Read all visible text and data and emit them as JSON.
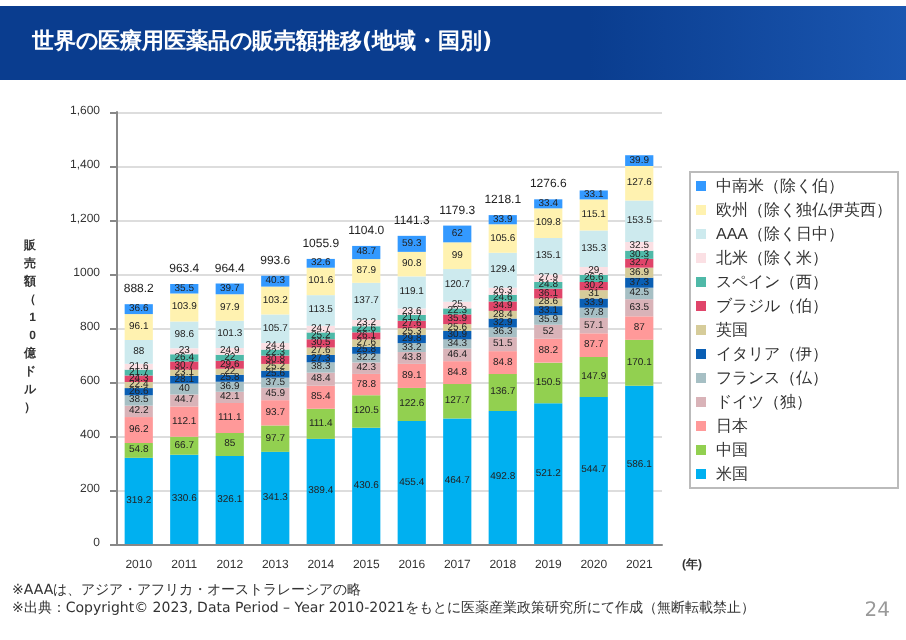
{
  "chart_data": {
    "type": "bar",
    "stacked": true,
    "title": "世界の医療用医薬品の販売額推移(地域・国別)",
    "ylabel": "販売額（10億ドル）",
    "xlabel": "(年)",
    "categories": [
      "2010",
      "2011",
      "2012",
      "2013",
      "2014",
      "2015",
      "2016",
      "2017",
      "2018",
      "2019",
      "2020",
      "2021"
    ],
    "ylim": [
      0,
      1600
    ],
    "yticks": [
      0,
      200,
      400,
      600,
      800,
      1000,
      {
        "value": 1200,
        "label": "1,200"
      },
      {
        "value": 1400,
        "label": "1,400"
      },
      {
        "value": 1600,
        "label": "1,600"
      }
    ],
    "grid": "y",
    "legend": "right",
    "data_labels": true,
    "totals": [
      "888.2",
      "963.4",
      "964.4",
      "993.6",
      "1055.9",
      "1104.0",
      "1141.3",
      "1179.3",
      "1218.1",
      "1276.6",
      null,
      null
    ],
    "series": [
      {
        "name": "米国",
        "color": "#00b0f0",
        "values": [
          319.2,
          330.6,
          326.1,
          341.3,
          389.4,
          430.6,
          455.4,
          464.7,
          492.8,
          521.2,
          544.7,
          586.1
        ]
      },
      {
        "name": "中国",
        "color": "#92d050",
        "values": [
          54.8,
          66.7,
          85.0,
          97.7,
          111.4,
          120.5,
          122.6,
          127.7,
          136.7,
          150.5,
          147.9,
          170.1
        ]
      },
      {
        "name": "日本",
        "color": "#ff9999",
        "values": [
          96.2,
          112.1,
          111.1,
          93.7,
          85.4,
          78.8,
          89.1,
          84.8,
          84.8,
          88.2,
          87.7,
          87.0
        ]
      },
      {
        "name": "ドイツ（独）",
        "color": "#d9b3b8",
        "values": [
          42.2,
          44.7,
          42.1,
          45.9,
          48.4,
          42.3,
          43.8,
          46.4,
          51.5,
          52.0,
          57.1,
          63.5
        ]
      },
      {
        "name": "フランス（仏）",
        "color": "#a6bfc4",
        "values": [
          38.5,
          40.0,
          36.9,
          37.5,
          38.3,
          32.2,
          33.2,
          34.3,
          36.3,
          35.9,
          37.8,
          42.5
        ]
      },
      {
        "name": "イタリア（伊）",
        "color": "#0a5fb4",
        "values": [
          26.6,
          28.1,
          25.8,
          25.6,
          27.3,
          25.8,
          29.8,
          30.9,
          32.9,
          33.1,
          33.9,
          37.3
        ]
      },
      {
        "name": "英国",
        "color": "#d6cc9a",
        "values": [
          22.4,
          23.1,
          22.0,
          25.2,
          27.6,
          27.6,
          25.3,
          25.6,
          28.4,
          28.6,
          31.0,
          36.9
        ]
      },
      {
        "name": "ブラジル（伯）",
        "color": "#e0456a",
        "values": [
          24.3,
          30.7,
          29.6,
          30.8,
          30.5,
          26.1,
          27.6,
          35.9,
          34.9,
          36.1,
          30.2,
          32.7
        ]
      },
      {
        "name": "スペイン（西）",
        "color": "#4fb9a8",
        "values": [
          21.7,
          26.4,
          22.0,
          22.3,
          25.2,
          22.6,
          21.7,
          22.3,
          24.6,
          24.8,
          26.6,
          30.3
        ]
      },
      {
        "name": "北米（除く米）",
        "color": "#fbe0e4",
        "values": [
          21.6,
          23.0,
          24.9,
          24.4,
          24.7,
          23.2,
          23.6,
          25.0,
          26.3,
          27.9,
          29.0,
          32.5
        ]
      },
      {
        "name": "AAA（除く日中）",
        "color": "#cdeaee",
        "values": [
          88.0,
          98.6,
          101.3,
          105.7,
          113.5,
          137.7,
          119.1,
          120.7,
          129.4,
          135.1,
          135.3,
          153.5
        ]
      },
      {
        "name": "欧州（除く独仏伊英西）",
        "color": "#fff2b0",
        "values": [
          96.1,
          103.9,
          97.9,
          103.2,
          101.6,
          87.9,
          90.8,
          99.0,
          105.6,
          109.8,
          115.1,
          127.6
        ]
      },
      {
        "name": "中南米（除く伯）",
        "color": "#3399ff",
        "values": [
          36.6,
          35.5,
          39.7,
          40.3,
          32.6,
          48.7,
          59.3,
          62.0,
          33.9,
          33.4,
          33.1,
          39.9
        ]
      }
    ],
    "annotations": [
      "※AAAは、アジア・アフリカ・オーストラレーシアの略",
      "※出典：Copyright© 2023, Data Period – Year 2010-2021をもとに医薬産業政策研究所にて作成（無断転載禁止）",
      "24"
    ]
  }
}
